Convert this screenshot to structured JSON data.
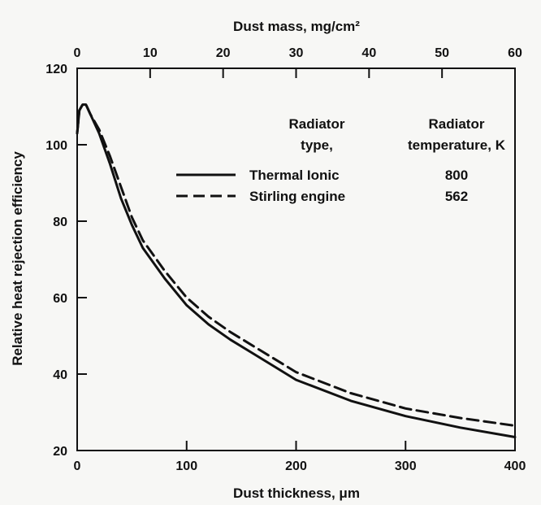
{
  "chart_data": {
    "type": "line",
    "title": "",
    "xlabel": "Dust thickness, μm",
    "ylabel": "Relative heat rejection efficiency",
    "x2label": "Dust mass, mg/cm²",
    "xlim": [
      0,
      400
    ],
    "ylim": [
      20,
      120
    ],
    "x2lim": [
      0,
      60
    ],
    "xticks": [
      0,
      100,
      200,
      300,
      400
    ],
    "yticks": [
      20,
      40,
      60,
      80,
      100,
      120
    ],
    "x2ticks": [
      0,
      10,
      20,
      30,
      40,
      50,
      60
    ],
    "grid": false,
    "legend_placement": "top-right",
    "legend": {
      "col1_header": [
        "Radiator",
        "type,"
      ],
      "col2_header": [
        "Radiator",
        "temperature, K"
      ],
      "entries": [
        {
          "name": "Thermal Ionic",
          "temperature": "800",
          "style": "solid"
        },
        {
          "name": "Stirling engine",
          "temperature": "562",
          "style": "dashed"
        }
      ]
    },
    "series": [
      {
        "name": "Thermal Ionic",
        "x": [
          0,
          2,
          5,
          8,
          12,
          20,
          30,
          40,
          50,
          60,
          80,
          100,
          120,
          140,
          160,
          180,
          200,
          250,
          300,
          350,
          400
        ],
        "y": [
          103,
          109,
          110.5,
          110.5,
          108,
          103,
          95,
          86,
          79,
          73,
          65,
          58,
          53,
          49,
          45.5,
          42,
          38.5,
          33,
          29,
          26,
          23.5
        ]
      },
      {
        "name": "Stirling engine",
        "x": [
          0,
          2,
          5,
          8,
          12,
          20,
          30,
          40,
          50,
          60,
          80,
          100,
          120,
          140,
          160,
          180,
          200,
          250,
          300,
          350,
          400
        ],
        "y": [
          103,
          109,
          110.5,
          110.5,
          108,
          104,
          97,
          89,
          81,
          75,
          67,
          60,
          55,
          51,
          47.5,
          44,
          40.5,
          35,
          31,
          28.5,
          26.5
        ]
      }
    ]
  }
}
